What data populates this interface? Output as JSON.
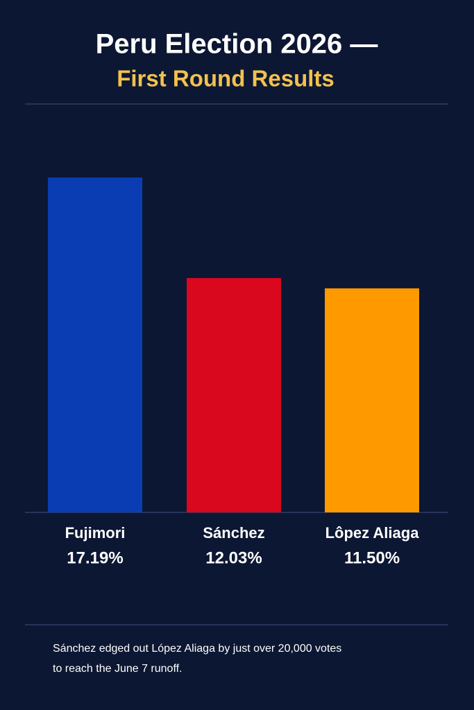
{
  "chart_data": {
    "type": "bar",
    "title": "Peru Election 2026 —",
    "subtitle": "First Round Results",
    "categories": [
      "Fujimori",
      "Sánchez",
      "Lôpez Aliaga"
    ],
    "values": [
      17.19,
      12.03,
      11.5
    ],
    "value_labels": [
      "17.19%",
      "12.03%",
      "11.50%"
    ],
    "colors": [
      "#0a3db3",
      "#d9081f",
      "#ff9900"
    ],
    "note": [
      "Sánchez edged out López Aliaga by just over 20,000 votes",
      "to reach the June 7 runoff."
    ]
  }
}
